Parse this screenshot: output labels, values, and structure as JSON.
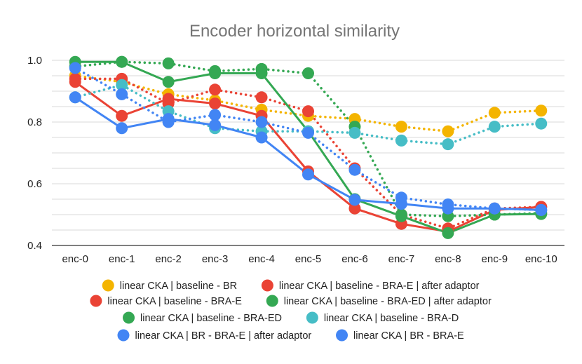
{
  "chart_data": {
    "type": "line",
    "title": "Encoder horizontal similarity",
    "xlabel": "",
    "ylabel": "",
    "ylim": [
      0.4,
      1.0
    ],
    "yticks": [
      "0.4",
      "0.6",
      "0.8",
      "1.0"
    ],
    "grid": true,
    "legend_position": "bottom",
    "categories": [
      "enc-0",
      "enc-1",
      "enc-2",
      "enc-3",
      "enc-4",
      "enc-5",
      "enc-6",
      "enc-7",
      "enc-8",
      "enc-9",
      "enc-10"
    ],
    "series": [
      {
        "name": "linear CKA | baseline - BR",
        "color": "#F4B400",
        "style": "dotted",
        "values": [
          0.95,
          0.93,
          0.89,
          0.87,
          0.84,
          0.82,
          0.81,
          0.785,
          0.77,
          0.83,
          0.837
        ]
      },
      {
        "name": "linear CKA | baseline - BRA-E | after adaptor",
        "color": "#EA4335",
        "style": "dotted",
        "values": [
          0.94,
          0.94,
          0.86,
          0.905,
          0.88,
          0.835,
          0.65,
          0.5,
          0.455,
          0.52,
          0.525
        ]
      },
      {
        "name": "linear CKA | baseline - BRA-E",
        "color": "#EA4335",
        "style": "solid",
        "values": [
          0.93,
          0.82,
          0.875,
          0.86,
          0.82,
          0.64,
          0.52,
          0.47,
          0.445,
          0.515,
          0.525
        ]
      },
      {
        "name": "linear CKA | baseline - BRA-ED | after adaptor",
        "color": "#34A853",
        "style": "dotted",
        "values": [
          0.98,
          0.995,
          0.99,
          0.965,
          0.972,
          0.958,
          0.785,
          0.5,
          0.495,
          0.5,
          0.505
        ]
      },
      {
        "name": "linear CKA | baseline - BRA-ED",
        "color": "#34A853",
        "style": "solid",
        "values": [
          0.995,
          0.995,
          0.93,
          0.958,
          0.958,
          0.77,
          0.55,
          0.495,
          0.44,
          0.5,
          0.502
        ]
      },
      {
        "name": "linear CKA | baseline - BRA-D",
        "color": "#46BDC6",
        "style": "dotted",
        "values": [
          0.88,
          0.92,
          0.835,
          0.78,
          0.77,
          0.77,
          0.765,
          0.74,
          0.728,
          0.785,
          0.795
        ]
      },
      {
        "name": "linear CKA | BR - BRA-E | after adaptor",
        "color": "#4285F4",
        "style": "dotted",
        "values": [
          0.975,
          0.89,
          0.8,
          0.823,
          0.8,
          0.765,
          0.645,
          0.555,
          0.533,
          0.52,
          0.515
        ]
      },
      {
        "name": "linear CKA | BR - BRA-E",
        "color": "#4285F4",
        "style": "solid",
        "values": [
          0.88,
          0.78,
          0.81,
          0.79,
          0.75,
          0.63,
          0.548,
          0.535,
          0.52,
          0.52,
          0.515
        ]
      }
    ]
  }
}
